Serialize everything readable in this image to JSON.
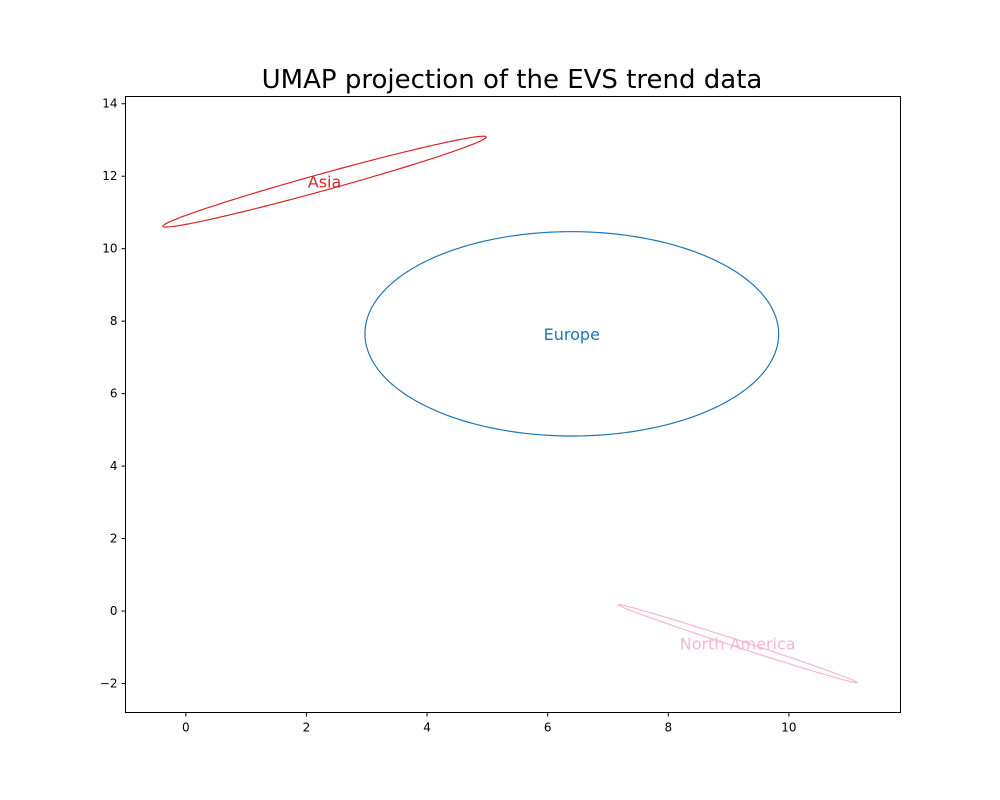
{
  "chart_data": {
    "type": "scatter",
    "title": "UMAP projection of the EVS trend data",
    "xlabel": "",
    "ylabel": "",
    "xlim": [
      -1.0,
      11.85
    ],
    "ylim": [
      -2.8,
      14.2
    ],
    "xticks": [
      0,
      2,
      4,
      6,
      8,
      10
    ],
    "yticks": [
      -2,
      0,
      2,
      4,
      6,
      8,
      10,
      12,
      14
    ],
    "ytick_labels": [
      "−2",
      "0",
      "2",
      "4",
      "6",
      "8",
      "10",
      "12",
      "14"
    ],
    "grid": false,
    "series": [
      {
        "name": "Asia",
        "color": "#d62728",
        "center": [
          2.3,
          11.85
        ],
        "semi_major": 2.95,
        "semi_minor": 0.22,
        "angle_deg": 24.8
      },
      {
        "name": "Europe",
        "color": "#1f77b4",
        "center": [
          6.4,
          7.65
        ],
        "semi_major": 3.43,
        "semi_minor": 2.82,
        "angle_deg": -0.3
      },
      {
        "name": "North America",
        "color": "#f7b6d2",
        "center": [
          9.15,
          -0.9
        ],
        "semi_major": 2.25,
        "semi_minor": 0.09,
        "angle_deg": -28.5
      }
    ]
  }
}
